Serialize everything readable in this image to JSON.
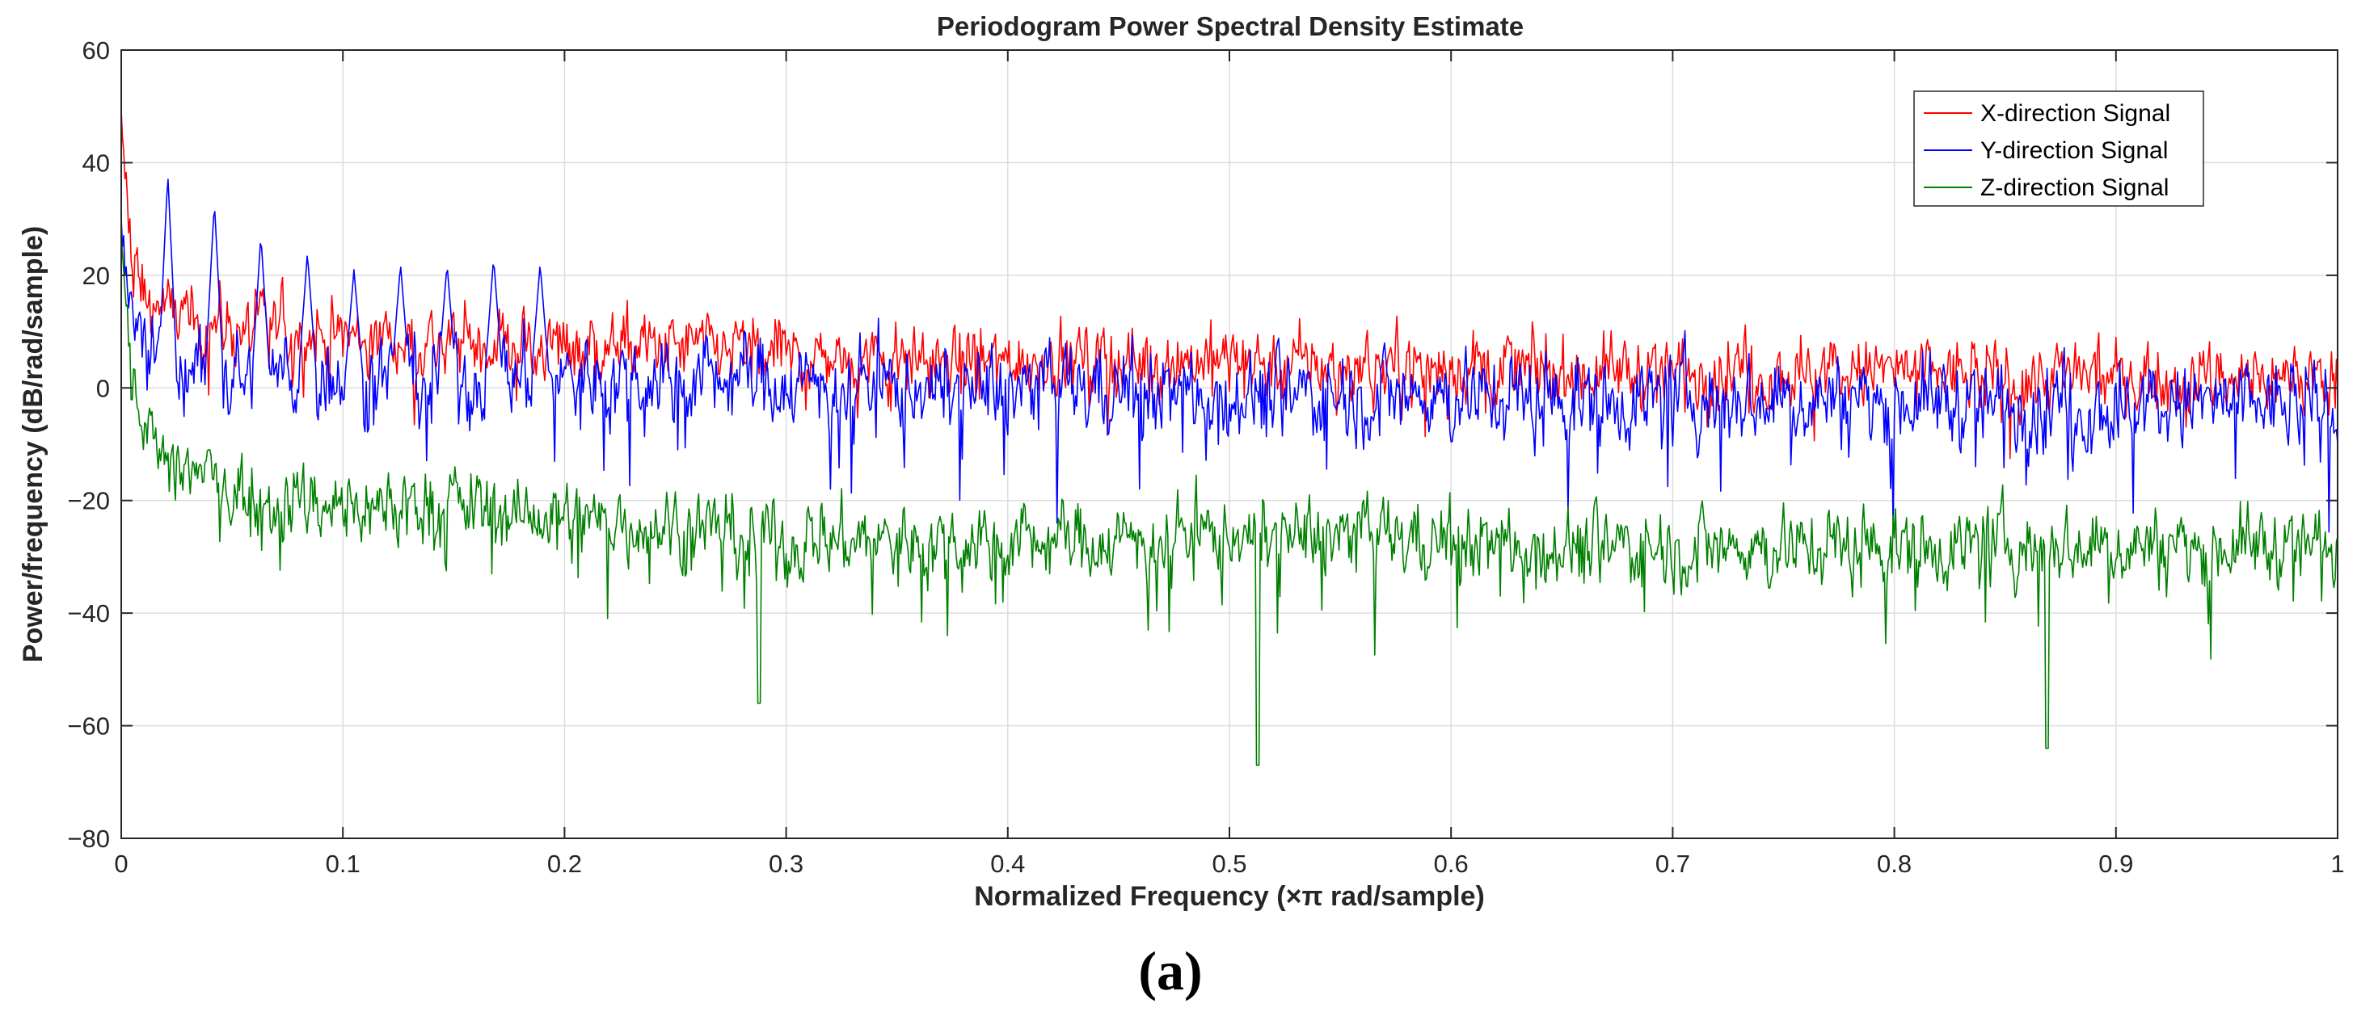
{
  "chart_data": {
    "type": "line",
    "title": "Periodogram Power Spectral Density Estimate",
    "xlabel": "Normalized Frequency  (×π rad/sample)",
    "ylabel": "Power/frequency (dB/rad/sample)",
    "xlim": [
      0,
      1
    ],
    "ylim": [
      -80,
      60
    ],
    "xticks": [
      0,
      0.1,
      0.2,
      0.3,
      0.4,
      0.5,
      0.6,
      0.7,
      0.8,
      0.9,
      1
    ],
    "xtick_labels": [
      "0",
      "0.1",
      "0.2",
      "0.3",
      "0.4",
      "0.5",
      "0.6",
      "0.7",
      "0.8",
      "0.9",
      "1"
    ],
    "yticks": [
      60,
      40,
      20,
      0,
      -20,
      -40,
      -60,
      -80
    ],
    "ytick_labels": [
      "60",
      "40",
      "20",
      "0",
      "−20",
      "−40",
      "−60",
      "−80"
    ],
    "grid": true,
    "legend_position": "top-right",
    "series": [
      {
        "name": "X-direction Signal",
        "color": "#ff0000",
        "x": [
          0,
          0.005,
          0.01,
          0.02,
          0.03,
          0.04,
          0.05,
          0.06,
          0.08,
          0.1,
          0.12,
          0.14,
          0.16,
          0.18,
          0.2,
          0.22,
          0.24,
          0.26,
          0.28,
          0.3,
          0.35,
          0.4,
          0.45,
          0.5,
          0.55,
          0.6,
          0.65,
          0.7,
          0.75,
          0.8,
          0.85,
          0.9,
          0.95,
          1.0
        ],
        "values": [
          48,
          22,
          16,
          14,
          12,
          12,
          11,
          10,
          10,
          9,
          9,
          8,
          8,
          8,
          8,
          7,
          7,
          7,
          7,
          6,
          5,
          5,
          5,
          5,
          4,
          4,
          3,
          3,
          3,
          3,
          2,
          2,
          2,
          2
        ]
      },
      {
        "name": "Y-direction Signal",
        "color": "#0000ff",
        "x": [
          0,
          0.005,
          0.01,
          0.02,
          0.03,
          0.04,
          0.05,
          0.06,
          0.08,
          0.1,
          0.12,
          0.14,
          0.16,
          0.18,
          0.2,
          0.22,
          0.24,
          0.26,
          0.28,
          0.3,
          0.35,
          0.4,
          0.45,
          0.5,
          0.55,
          0.6,
          0.65,
          0.7,
          0.75,
          0.8,
          0.85,
          0.9,
          0.95,
          1.0
        ],
        "values": [
          30,
          12,
          6,
          4,
          3,
          3,
          2,
          2,
          2,
          2,
          2,
          2,
          2,
          2,
          2,
          2,
          2,
          2,
          2,
          1,
          0,
          0,
          0,
          -1,
          -1,
          -1,
          -2,
          -2,
          -2,
          -2,
          -3,
          -3,
          -3,
          -3
        ],
        "peaks": [
          {
            "x": 0.021,
            "value": 38
          },
          {
            "x": 0.042,
            "value": 33
          },
          {
            "x": 0.063,
            "value": 27
          },
          {
            "x": 0.084,
            "value": 24
          },
          {
            "x": 0.105,
            "value": 21
          },
          {
            "x": 0.126,
            "value": 22
          },
          {
            "x": 0.147,
            "value": 22
          },
          {
            "x": 0.168,
            "value": 23
          },
          {
            "x": 0.189,
            "value": 22
          }
        ]
      },
      {
        "name": "Z-direction Signal",
        "color": "#008000",
        "x": [
          0,
          0.005,
          0.01,
          0.02,
          0.03,
          0.04,
          0.05,
          0.06,
          0.08,
          0.1,
          0.12,
          0.14,
          0.16,
          0.18,
          0.2,
          0.22,
          0.24,
          0.26,
          0.28,
          0.3,
          0.35,
          0.4,
          0.45,
          0.5,
          0.55,
          0.6,
          0.65,
          0.7,
          0.75,
          0.8,
          0.85,
          0.9,
          0.95,
          1.0
        ],
        "values": [
          28,
          0,
          -8,
          -12,
          -14,
          -16,
          -18,
          -19,
          -20,
          -21,
          -21,
          -20,
          -21,
          -23,
          -23,
          -24,
          -24,
          -25,
          -26,
          -27,
          -27,
          -27,
          -27,
          -26,
          -26,
          -27,
          -28,
          -28,
          -28,
          -28,
          -28,
          -28,
          -28,
          -28
        ],
        "dips": [
          {
            "x": 0.288,
            "value": -56
          },
          {
            "x": 0.513,
            "value": -67
          },
          {
            "x": 0.869,
            "value": -64
          }
        ]
      }
    ]
  },
  "caption": "(a)"
}
